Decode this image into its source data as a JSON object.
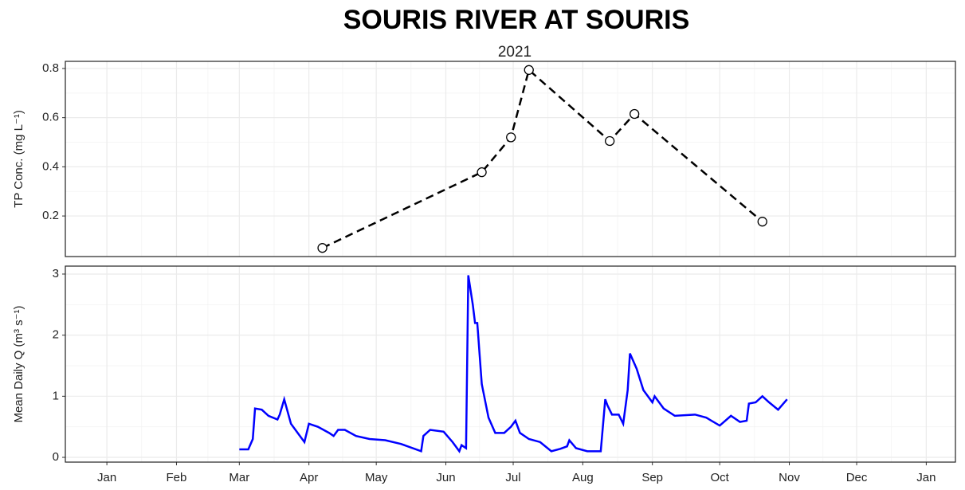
{
  "chart_data": [
    {
      "type": "line",
      "title": "SOURIS RIVER AT SOURIS",
      "subtitle": "2021",
      "ylabel": "TP Conc. (mg L⁻¹)",
      "x": [
        97,
        168,
        181,
        189,
        225,
        236,
        293
      ],
      "series": [
        {
          "color": "#000000",
          "dashed": true,
          "markers": true,
          "values": [
            0.07,
            0.378,
            0.52,
            0.794,
            0.505,
            0.615,
            0.177
          ]
        }
      ],
      "xlim": [
        -17.5,
        379
      ],
      "xticks": [
        1,
        32,
        60,
        91,
        121,
        152,
        182,
        213,
        244,
        274,
        305,
        335,
        366
      ],
      "ylim": [
        0.035,
        0.829
      ],
      "yticks": [
        0.2,
        0.4,
        0.6,
        0.8
      ],
      "grid": true
    },
    {
      "type": "line",
      "ylabel": "Mean Daily Q (m³ s⁻¹)",
      "x": [
        60,
        64,
        66,
        67,
        70,
        73,
        77,
        78,
        80,
        83,
        86,
        89,
        91,
        95,
        100,
        102,
        104,
        107,
        112,
        118,
        125,
        132,
        141,
        142,
        145,
        151,
        155,
        158,
        159,
        161,
        162,
        164,
        165,
        166,
        168,
        171,
        174,
        178,
        181,
        183,
        185,
        189,
        194,
        199,
        203,
        206,
        207,
        210,
        215,
        221,
        223,
        224,
        226,
        229,
        231,
        233,
        234,
        237,
        240,
        244,
        245,
        249,
        254,
        263,
        268,
        274,
        279,
        283,
        286,
        287,
        290,
        293,
        296,
        300,
        304
      ],
      "series": [
        {
          "color": "#0000ff",
          "dashed": false,
          "markers": false,
          "values": [
            0.13,
            0.13,
            0.3,
            0.8,
            0.78,
            0.68,
            0.62,
            0.7,
            0.95,
            0.55,
            0.4,
            0.25,
            0.55,
            0.5,
            0.4,
            0.35,
            0.45,
            0.45,
            0.35,
            0.3,
            0.28,
            0.22,
            0.1,
            0.35,
            0.45,
            0.42,
            0.25,
            0.1,
            0.2,
            0.15,
            2.98,
            2.5,
            2.2,
            2.2,
            1.2,
            0.65,
            0.4,
            0.4,
            0.5,
            0.6,
            0.4,
            0.3,
            0.25,
            0.1,
            0.14,
            0.18,
            0.28,
            0.15,
            0.1,
            0.1,
            0.95,
            0.85,
            0.7,
            0.7,
            0.55,
            1.1,
            1.7,
            1.45,
            1.1,
            0.9,
            1.0,
            0.8,
            0.68,
            0.7,
            0.65,
            0.52,
            0.68,
            0.58,
            0.6,
            0.88,
            0.9,
            1.0,
            0.9,
            0.78,
            0.95
          ]
        }
      ],
      "xlim": [
        -17.5,
        379
      ],
      "xticks": [
        {
          "value": 1,
          "label": "Jan"
        },
        {
          "value": 32,
          "label": "Feb"
        },
        {
          "value": 60,
          "label": "Mar"
        },
        {
          "value": 91,
          "label": "Apr"
        },
        {
          "value": 121,
          "label": "May"
        },
        {
          "value": 152,
          "label": "Jun"
        },
        {
          "value": 182,
          "label": "Jul"
        },
        {
          "value": 213,
          "label": "Aug"
        },
        {
          "value": 244,
          "label": "Sep"
        },
        {
          "value": 274,
          "label": "Oct"
        },
        {
          "value": 305,
          "label": "Nov"
        },
        {
          "value": 335,
          "label": "Dec"
        },
        {
          "value": 366,
          "label": "Jan"
        }
      ],
      "ylim": [
        -0.078,
        3.13
      ],
      "yticks": [
        0,
        1,
        2,
        3
      ],
      "grid": true
    }
  ]
}
